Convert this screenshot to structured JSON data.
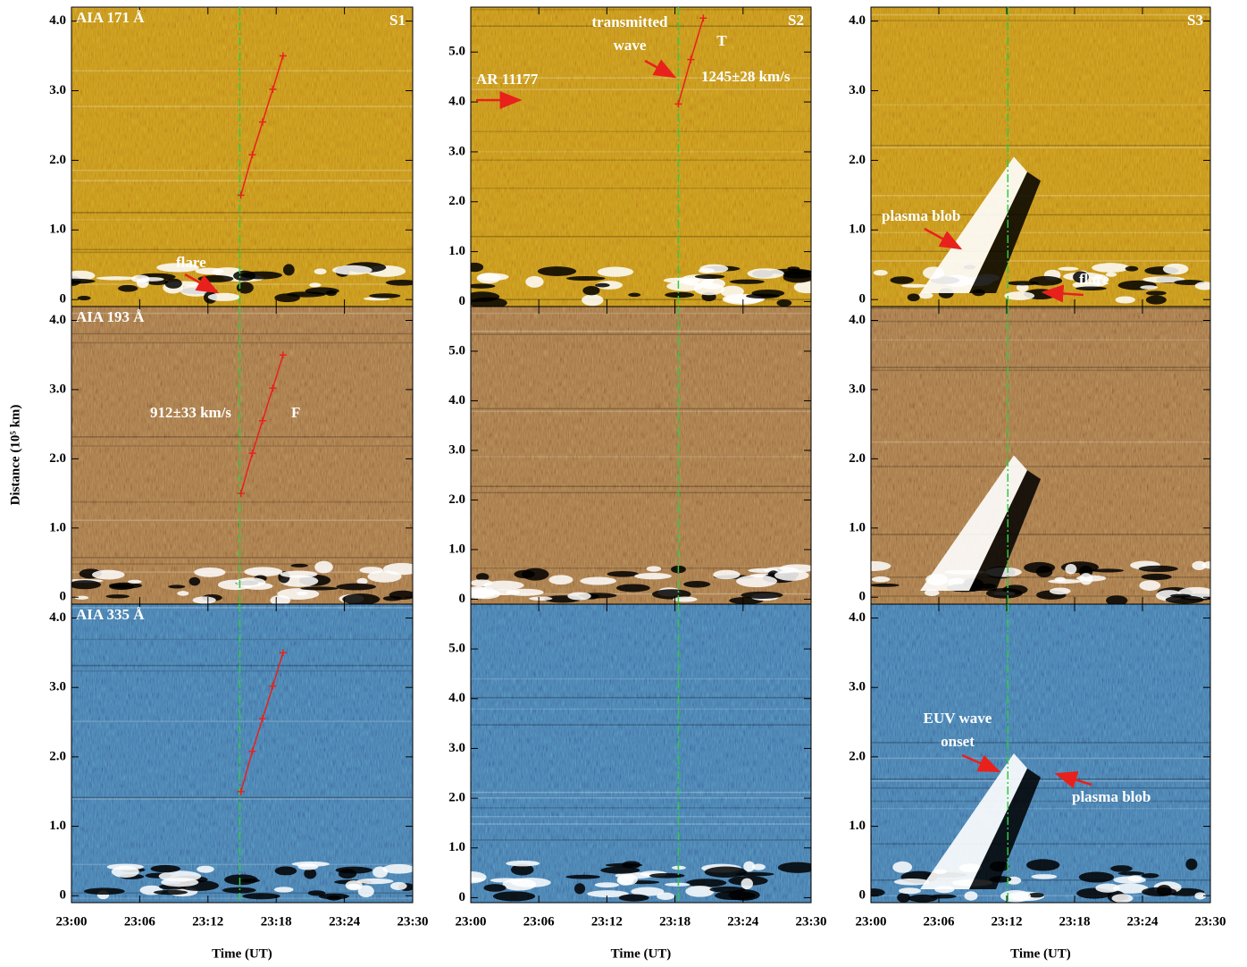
{
  "chart_data": [
    {
      "type": "image",
      "channel": "AIA 171 Å",
      "slit": "S1",
      "color": "#c8961e",
      "xlim": [
        0,
        30
      ],
      "xticks": [
        0,
        6,
        12,
        18,
        24,
        30
      ],
      "ylim": [
        -0.1,
        4.2
      ],
      "yticks": [
        0,
        {
          "value": 1,
          "label": "1.0"
        },
        {
          "value": 2,
          "label": "2.0"
        },
        {
          "value": 3,
          "label": "3.0"
        },
        {
          "value": 4,
          "label": "4.0"
        }
      ],
      "onset_time": 14.8,
      "fit": {
        "color": "#e8211c",
        "x": [
          14.9,
          15.9,
          16.8,
          17.7,
          18.6
        ],
        "values": [
          1.5,
          2.08,
          2.55,
          3.02,
          3.5
        ]
      },
      "annotations": [
        [
          "flare"
        ]
      ]
    },
    {
      "type": "image",
      "slit": "S2",
      "color": "#c8961e",
      "xlim": [
        0,
        30
      ],
      "xticks": [
        0,
        6,
        12,
        18,
        24,
        30
      ],
      "ylim": [
        -0.1,
        5.9
      ],
      "yticks": [
        0,
        {
          "value": 1,
          "label": "1.0"
        },
        {
          "value": 2,
          "label": "2.0"
        },
        {
          "value": 3,
          "label": "3.0"
        },
        {
          "value": 4,
          "label": "4.0"
        },
        {
          "value": 5,
          "label": "5.0"
        }
      ],
      "onset_time": 18.3,
      "fit": {
        "color": "#e8211c",
        "x": [
          18.3,
          19.4,
          20.5
        ],
        "values": [
          3.96,
          4.85,
          5.68
        ]
      },
      "annotations": [
        [
          "transmitted",
          "wave"
        ],
        [
          "T"
        ],
        [
          "AR 11177"
        ],
        [
          "1245±28 km/s"
        ]
      ]
    },
    {
      "type": "image",
      "slit": "S3",
      "color": "#c8961e",
      "xlim": [
        0,
        30
      ],
      "xticks": [
        0,
        6,
        12,
        18,
        24,
        30
      ],
      "ylim": [
        -0.1,
        4.2
      ],
      "yticks": [
        0,
        {
          "value": 1,
          "label": "1.0"
        },
        {
          "value": 2,
          "label": "2.0"
        },
        {
          "value": 3,
          "label": "3.0"
        },
        {
          "value": 4,
          "label": "4.0"
        }
      ],
      "onset_time": 12.1,
      "annotations": [
        [
          "plasma blob"
        ],
        [
          "flare"
        ]
      ]
    },
    {
      "type": "image",
      "channel": "AIA 193 Å",
      "color": "#a87a4c",
      "y_label": "Distance (10⁵ km)",
      "xlim": [
        0,
        30
      ],
      "xticks": [
        0,
        6,
        12,
        18,
        24,
        30
      ],
      "ylim": [
        -0.1,
        4.2
      ],
      "yticks": [
        0,
        {
          "value": 1,
          "label": "1.0"
        },
        {
          "value": 2,
          "label": "2.0"
        },
        {
          "value": 3,
          "label": "3.0"
        },
        {
          "value": 4,
          "label": "4.0"
        }
      ],
      "onset_time": 14.8,
      "fit": {
        "color": "#e8211c",
        "x": [
          14.9,
          15.9,
          16.8,
          17.7,
          18.6
        ],
        "values": [
          1.5,
          2.08,
          2.55,
          3.02,
          3.5
        ]
      },
      "annotations": [
        [
          "912±33 km/s"
        ],
        [
          "F"
        ]
      ]
    },
    {
      "type": "image",
      "color": "#a87a4c",
      "xlim": [
        0,
        30
      ],
      "xticks": [
        0,
        6,
        12,
        18,
        24,
        30
      ],
      "ylim": [
        -0.1,
        5.9
      ],
      "yticks": [
        0,
        {
          "value": 1,
          "label": "1.0"
        },
        {
          "value": 2,
          "label": "2.0"
        },
        {
          "value": 3,
          "label": "3.0"
        },
        {
          "value": 4,
          "label": "4.0"
        },
        {
          "value": 5,
          "label": "5.0"
        }
      ],
      "onset_time": 18.3,
      "annotations": []
    },
    {
      "type": "image",
      "color": "#a87a4c",
      "xlim": [
        0,
        30
      ],
      "xticks": [
        0,
        6,
        12,
        18,
        24,
        30
      ],
      "ylim": [
        -0.1,
        4.2
      ],
      "yticks": [
        0,
        {
          "value": 1,
          "label": "1.0"
        },
        {
          "value": 2,
          "label": "2.0"
        },
        {
          "value": 3,
          "label": "3.0"
        },
        {
          "value": 4,
          "label": "4.0"
        }
      ],
      "onset_time": 12.1,
      "annotations": []
    },
    {
      "type": "image",
      "channel": "AIA 335 Å",
      "color": "#4a7fb0",
      "x_label": "Time (UT)",
      "xlim": [
        0,
        30
      ],
      "xticks": [
        {
          "value": 0,
          "label": "23:00"
        },
        {
          "value": 6,
          "label": "23:06"
        },
        {
          "value": 12,
          "label": "23:12"
        },
        {
          "value": 18,
          "label": "23:18"
        },
        {
          "value": 24,
          "label": "23:24"
        },
        {
          "value": 30,
          "label": "23:30"
        }
      ],
      "ylim": [
        -0.1,
        4.2
      ],
      "yticks": [
        0,
        {
          "value": 1,
          "label": "1.0"
        },
        {
          "value": 2,
          "label": "2.0"
        },
        {
          "value": 3,
          "label": "3.0"
        },
        {
          "value": 4,
          "label": "4.0"
        }
      ],
      "onset_time": 14.8,
      "fit": {
        "color": "#e8211c",
        "x": [
          14.9,
          15.9,
          16.8,
          17.7,
          18.6
        ],
        "values": [
          1.5,
          2.08,
          2.55,
          3.02,
          3.5
        ]
      },
      "annotations": []
    },
    {
      "type": "image",
      "color": "#4a7fb0",
      "x_label": "Time (UT)",
      "xlim": [
        0,
        30
      ],
      "xticks": [
        {
          "value": 0,
          "label": "23:00"
        },
        {
          "value": 6,
          "label": "23:06"
        },
        {
          "value": 12,
          "label": "23:12"
        },
        {
          "value": 18,
          "label": "23:18"
        },
        {
          "value": 24,
          "label": "23:24"
        },
        {
          "value": 30,
          "label": "23:30"
        }
      ],
      "ylim": [
        -0.1,
        5.9
      ],
      "yticks": [
        0,
        {
          "value": 1,
          "label": "1.0"
        },
        {
          "value": 2,
          "label": "2.0"
        },
        {
          "value": 3,
          "label": "3.0"
        },
        {
          "value": 4,
          "label": "4.0"
        },
        {
          "value": 5,
          "label": "5.0"
        }
      ],
      "onset_time": 18.3,
      "annotations": []
    },
    {
      "type": "image",
      "color": "#4a7fb0",
      "x_label": "Time (UT)",
      "xlim": [
        0,
        30
      ],
      "xticks": [
        {
          "value": 0,
          "label": "23:00"
        },
        {
          "value": 6,
          "label": "23:06"
        },
        {
          "value": 12,
          "label": "23:12"
        },
        {
          "value": 18,
          "label": "23:18"
        },
        {
          "value": 24,
          "label": "23:24"
        },
        {
          "value": 30,
          "label": "23:30"
        }
      ],
      "ylim": [
        -0.1,
        4.2
      ],
      "yticks": [
        0,
        {
          "value": 1,
          "label": "1.0"
        },
        {
          "value": 2,
          "label": "2.0"
        },
        {
          "value": 3,
          "label": "3.0"
        },
        {
          "value": 4,
          "label": "4.0"
        }
      ],
      "onset_time": 12.1,
      "annotations": [
        [
          "EUV wave",
          "onset"
        ],
        [
          "plasma blob"
        ]
      ]
    }
  ]
}
